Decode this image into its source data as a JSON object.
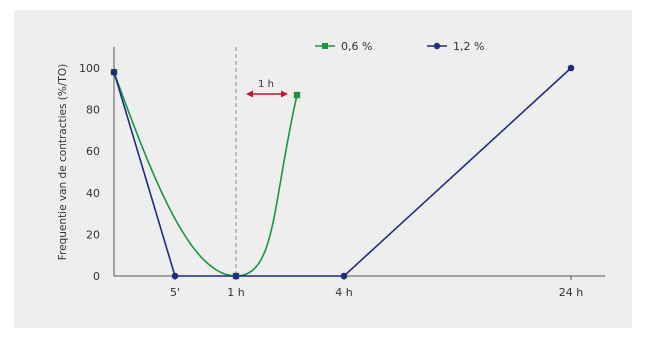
{
  "colors": {
    "background": "#eeeeee",
    "green": "#1a9641",
    "navy": "#1f2d7a",
    "arrow": "#c0162c",
    "axis": "#555555",
    "dashed": "#888888"
  },
  "chart_data": {
    "type": "line",
    "title": "",
    "xlabel": "",
    "ylabel": "Frequentie van de contracties (%/TO)",
    "ylim": [
      0,
      100
    ],
    "y_ticks": [
      "0",
      "20",
      "40",
      "60",
      "80",
      "100"
    ],
    "x_ticks": [
      "5'",
      "1 h",
      "4 h",
      "24 h"
    ],
    "legend_position": "top",
    "series": [
      {
        "name": "0,6 %",
        "color": "#1a9641",
        "marker": "square",
        "points": [
          {
            "x": "0",
            "y": 98
          },
          {
            "x": "1 h",
            "y": 0
          },
          {
            "x": "2 h",
            "y": 87
          }
        ]
      },
      {
        "name": "1,2 %",
        "color": "#1f2d7a",
        "marker": "circle",
        "points": [
          {
            "x": "0",
            "y": 98
          },
          {
            "x": "5'",
            "y": 0
          },
          {
            "x": "1 h",
            "y": 0
          },
          {
            "x": "4 h",
            "y": 0
          },
          {
            "x": "24 h",
            "y": 100
          }
        ]
      }
    ],
    "annotations": [
      {
        "text": "1 h",
        "kind": "double-arrow",
        "color": "#c0162c"
      }
    ],
    "reference_line": {
      "x": "1 h",
      "style": "dashed"
    }
  }
}
